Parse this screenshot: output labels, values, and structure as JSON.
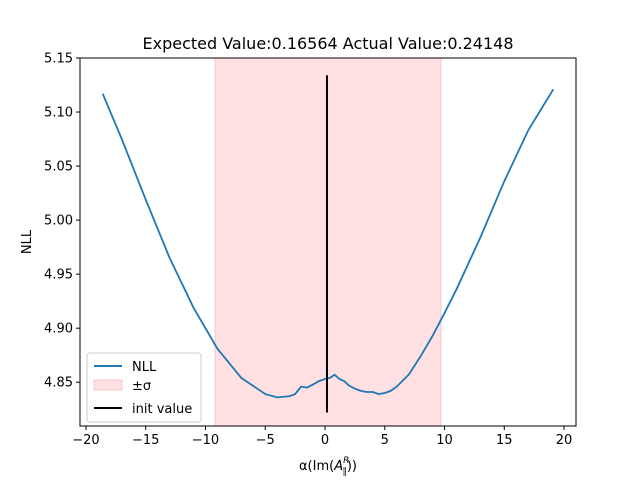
{
  "chart_data": {
    "type": "line",
    "title": "Expected Value:0.16564 Actual Value:0.24148",
    "xlabel_prefix": "α(Im(",
    "xlabel_var": "A",
    "xlabel_sup": "R",
    "xlabel_sub": "∥",
    "xlabel_suffix": "))",
    "ylabel": "NLL",
    "xlim": [
      -20.5,
      21.0
    ],
    "ylim": [
      4.8095,
      5.15
    ],
    "xticks": [
      -20,
      -15,
      -10,
      -5,
      0,
      5,
      10,
      15,
      20
    ],
    "xtick_labels": [
      "−20",
      "−15",
      "−10",
      "−5",
      "0",
      "5",
      "10",
      "15",
      "20"
    ],
    "yticks": [
      4.85,
      4.9,
      4.95,
      5.0,
      5.05,
      5.1,
      5.15
    ],
    "ytick_labels": [
      "4.85",
      "4.90",
      "4.95",
      "5.00",
      "5.05",
      "5.10",
      "5.15"
    ],
    "colors": {
      "nll": "#1f77b4",
      "band": "#ffe0e3",
      "band_edge": "#f5c8cc",
      "init": "#000000"
    },
    "series": [
      {
        "name": "NLL",
        "x": [
          -18.6,
          -17.0,
          -15.0,
          -13.0,
          -11.0,
          -9.0,
          -7.0,
          -5.0,
          -4.0,
          -3.0,
          -2.5,
          -2.0,
          -1.5,
          -1.0,
          -0.5,
          0.0,
          0.4,
          0.8,
          1.2,
          1.6,
          2.0,
          2.5,
          3.0,
          3.5,
          4.0,
          4.5,
          5.0,
          5.5,
          6.0,
          7.0,
          8.0,
          9.0,
          10.0,
          11.0,
          13.0,
          15.0,
          17.0,
          19.1
        ],
        "y": [
          5.117,
          5.075,
          5.019,
          4.965,
          4.919,
          4.881,
          4.854,
          4.839,
          4.836,
          4.837,
          4.839,
          4.846,
          4.845,
          4.848,
          4.851,
          4.853,
          4.854,
          4.857,
          4.853,
          4.851,
          4.847,
          4.844,
          4.842,
          4.841,
          4.841,
          4.839,
          4.84,
          4.842,
          4.846,
          4.857,
          4.874,
          4.893,
          4.914,
          4.936,
          4.984,
          5.036,
          5.083,
          5.121
        ]
      }
    ],
    "band": {
      "name": "±σ",
      "x0": -9.2,
      "x1": 9.7
    },
    "init": {
      "name": "init value",
      "x": 0.16564,
      "y0": 4.822,
      "y1": 5.134
    },
    "legend": {
      "placement": "lower-left",
      "entries": [
        "NLL",
        "±σ",
        "init value"
      ]
    }
  }
}
